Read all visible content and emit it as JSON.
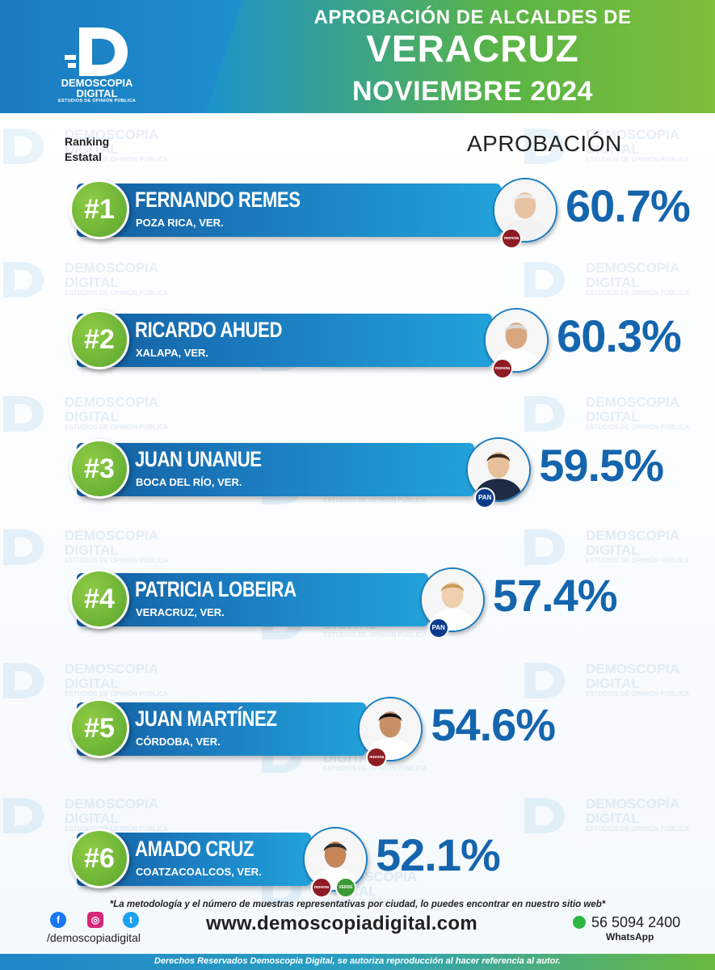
{
  "brand": {
    "name_line1": "DEMOSCOPIA",
    "name_line2": "DIGITAL",
    "tagline": "ESTUDIOS DE OPINIÓN PÚBLICA"
  },
  "header": {
    "title_line1": "APROBACIÓN DE ALCALDES DE",
    "title_line2": "VERACRUZ",
    "period": "NOVIEMBRE 2024"
  },
  "labels": {
    "ranking_line1": "Ranking",
    "ranking_line2": "Estatal",
    "approval": "APROBACIÓN"
  },
  "colors": {
    "bar_dark": "#135e9f",
    "bar_light": "#22a2da",
    "rank_circle": "#6db536",
    "percent_text": "#1465ad",
    "morena": "#8e1c24",
    "pan": "#0b3c8c",
    "verde": "#3a9a35"
  },
  "chart_data": {
    "type": "bar",
    "title": "APROBACIÓN DE ALCALDES DE VERACRUZ",
    "subtitle": "NOVIEMBRE 2024",
    "ylabel": "APROBACIÓN",
    "unit": "%",
    "categories": [
      "FERNANDO REMES",
      "RICARDO AHUED",
      "JUAN UNANUE",
      "PATRICIA LOBEIRA",
      "JUAN MARTÍNEZ",
      "AMADO CRUZ"
    ],
    "values": [
      60.7,
      60.3,
      59.5,
      57.4,
      54.6,
      52.1
    ],
    "rows": [
      {
        "rank": "#1",
        "name": "FERNANDO REMES",
        "city": "POZA RICA, VER.",
        "value": 60.7,
        "label": "60.7%",
        "parties": [
          {
            "name": "morena",
            "label": "morena"
          }
        ]
      },
      {
        "rank": "#2",
        "name": "RICARDO AHUED",
        "city": "XALAPA, VER.",
        "value": 60.3,
        "label": "60.3%",
        "parties": [
          {
            "name": "morena",
            "label": "morena"
          }
        ]
      },
      {
        "rank": "#3",
        "name": "JUAN UNANUE",
        "city": "BOCA DEL RÍO, VER.",
        "value": 59.5,
        "label": "59.5%",
        "parties": [
          {
            "name": "pan",
            "label": "PAN"
          }
        ]
      },
      {
        "rank": "#4",
        "name": "PATRICIA LOBEIRA",
        "city": "VERACRUZ, VER.",
        "value": 57.4,
        "label": "57.4%",
        "parties": [
          {
            "name": "pan",
            "label": "PAN"
          }
        ]
      },
      {
        "rank": "#5",
        "name": "JUAN MARTÍNEZ",
        "city": "CÓRDOBA, VER.",
        "value": 54.6,
        "label": "54.6%",
        "parties": [
          {
            "name": "morena",
            "label": "morena"
          }
        ]
      },
      {
        "rank": "#6",
        "name": "AMADO CRUZ",
        "city": "COATZACOALCOS, VER.",
        "value": 52.1,
        "label": "52.1%",
        "parties": [
          {
            "name": "morena",
            "label": "morena"
          },
          {
            "name": "verde",
            "label": "VERDE"
          }
        ]
      }
    ]
  },
  "footer": {
    "note": "*La metodología y el número de muestras representativas por ciudad, lo puedes encontrar en nuestro sitio web*",
    "social_handle": "/demoscopiadigital",
    "social_icons": [
      "facebook-icon",
      "instagram-icon",
      "twitter-icon"
    ],
    "website": "www.demoscopiadigital.com",
    "phone": "56 5094 2400",
    "whatsapp_label": "WhatsApp",
    "rights": "Derechos Reservados Demoscopia Digital, se autoriza reproducción al hacer referencia al autor."
  }
}
